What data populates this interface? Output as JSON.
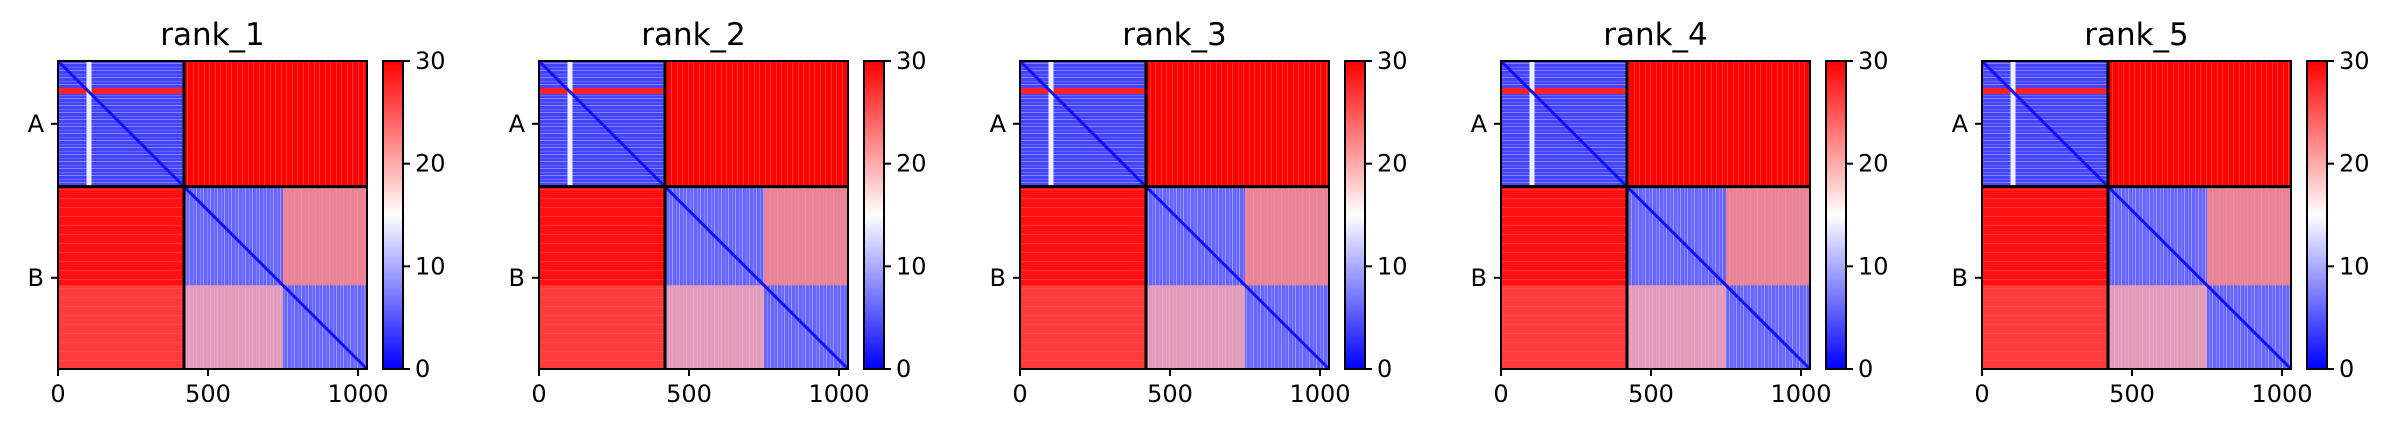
{
  "chart_data": [
    {
      "type": "heatmap",
      "title": "rank_1",
      "x_ticks": [
        "0",
        "500",
        "1000"
      ],
      "x_tick_values": [
        0,
        500,
        1000
      ],
      "x_range": [
        0,
        1030
      ],
      "y_tick_labels": [
        "A",
        "B"
      ],
      "chain_lengths": {
        "A": 420,
        "B": 610
      },
      "chain_boundary": 420,
      "colorbar": {
        "range": [
          0,
          30
        ],
        "ticks": [
          "0",
          "10",
          "20",
          "30"
        ],
        "cmap": "bwr"
      },
      "block_values": {
        "A-A": 4,
        "A-B": 30,
        "B-A": 29,
        "B-B": 6
      }
    },
    {
      "type": "heatmap",
      "title": "rank_2",
      "x_ticks": [
        "0",
        "500",
        "1000"
      ],
      "x_tick_values": [
        0,
        500,
        1000
      ],
      "x_range": [
        0,
        1030
      ],
      "y_tick_labels": [
        "A",
        "B"
      ],
      "chain_lengths": {
        "A": 420,
        "B": 610
      },
      "chain_boundary": 420,
      "colorbar": {
        "range": [
          0,
          30
        ],
        "ticks": [
          "0",
          "10",
          "20",
          "30"
        ],
        "cmap": "bwr"
      },
      "block_values": {
        "A-A": 4,
        "A-B": 30,
        "B-A": 29,
        "B-B": 6
      }
    },
    {
      "type": "heatmap",
      "title": "rank_3",
      "x_ticks": [
        "0",
        "500",
        "1000"
      ],
      "x_tick_values": [
        0,
        500,
        1000
      ],
      "x_range": [
        0,
        1030
      ],
      "y_tick_labels": [
        "A",
        "B"
      ],
      "chain_lengths": {
        "A": 420,
        "B": 610
      },
      "chain_boundary": 420,
      "colorbar": {
        "range": [
          0,
          30
        ],
        "ticks": [
          "0",
          "10",
          "20",
          "30"
        ],
        "cmap": "bwr"
      },
      "block_values": {
        "A-A": 4,
        "A-B": 30,
        "B-A": 29,
        "B-B": 6
      }
    },
    {
      "type": "heatmap",
      "title": "rank_4",
      "x_ticks": [
        "0",
        "500",
        "1000"
      ],
      "x_tick_values": [
        0,
        500,
        1000
      ],
      "x_range": [
        0,
        1030
      ],
      "y_tick_labels": [
        "A",
        "B"
      ],
      "chain_lengths": {
        "A": 420,
        "B": 610
      },
      "chain_boundary": 420,
      "colorbar": {
        "range": [
          0,
          30
        ],
        "ticks": [
          "0",
          "10",
          "20",
          "30"
        ],
        "cmap": "bwr"
      },
      "block_values": {
        "A-A": 4,
        "A-B": 30,
        "B-A": 29,
        "B-B": 6
      }
    },
    {
      "type": "heatmap",
      "title": "rank_5",
      "x_ticks": [
        "0",
        "500",
        "1000"
      ],
      "x_tick_values": [
        0,
        500,
        1000
      ],
      "x_range": [
        0,
        1030
      ],
      "y_tick_labels": [
        "A",
        "B"
      ],
      "chain_lengths": {
        "A": 420,
        "B": 610
      },
      "chain_boundary": 420,
      "colorbar": {
        "range": [
          0,
          30
        ],
        "ticks": [
          "0",
          "10",
          "20",
          "30"
        ],
        "cmap": "bwr"
      },
      "block_values": {
        "A-A": 4,
        "A-B": 30,
        "B-A": 29,
        "B-B": 6
      }
    }
  ],
  "colors": {
    "low": "#0000ff",
    "mid": "#ffffff",
    "high": "#ff0000",
    "axis": "#000000"
  }
}
